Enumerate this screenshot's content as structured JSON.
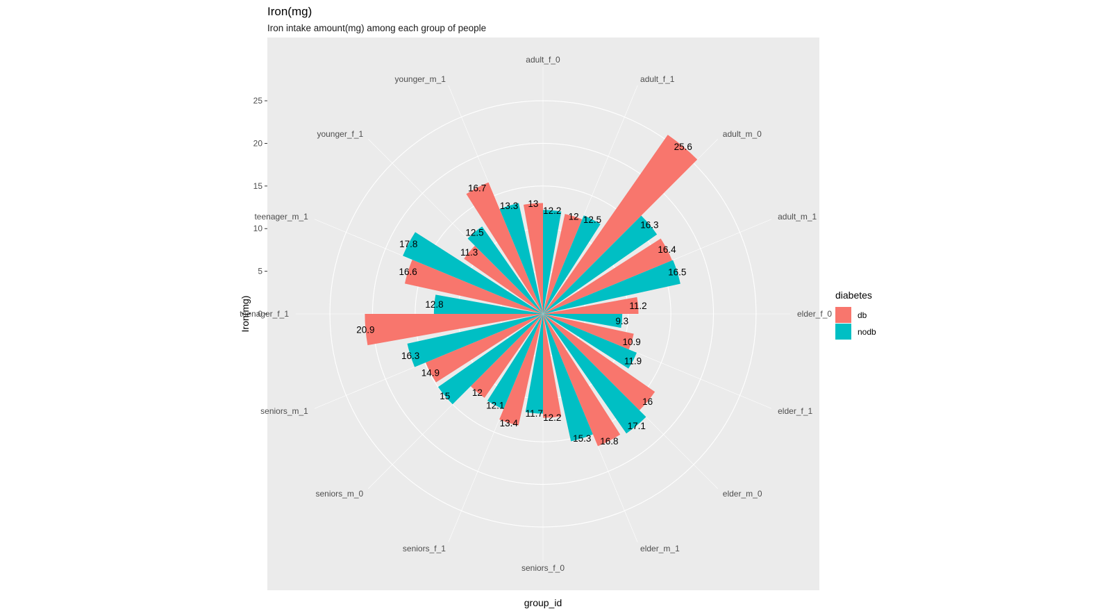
{
  "chart_data": {
    "type": "bar",
    "coord": "polar",
    "title": "Iron(mg)",
    "subtitle": "Iron intake amount(mg) among each group of people",
    "xlabel": "group_id",
    "ylabel": "Iron(mg)",
    "ylim": [
      0,
      29
    ],
    "yticks": [
      0,
      5,
      10,
      15,
      20,
      25
    ],
    "grid": true,
    "categories": [
      "adult_f_0",
      "adult_f_1",
      "adult_m_0",
      "adult_m_1",
      "elder_f_0",
      "elder_f_1",
      "elder_m_0",
      "elder_m_1",
      "seniors_f_0",
      "seniors_f_1",
      "seniors_m_0",
      "seniors_m_1",
      "teenager_f_1",
      "teenager_m_1",
      "younger_f_1",
      "younger_m_1"
    ],
    "series": [
      {
        "name": "db",
        "color": "#F8766D",
        "values": [
          13,
          12,
          25.6,
          16.4,
          11.2,
          10.9,
          16,
          16.8,
          12.2,
          13.4,
          12,
          14.9,
          20.9,
          16.6,
          11.3,
          16.7
        ]
      },
      {
        "name": "nodb",
        "color": "#00BFC4",
        "values": [
          12.2,
          12.5,
          16.3,
          16.5,
          9.3,
          11.9,
          17.1,
          15.3,
          11.7,
          12.1,
          15,
          16.3,
          12.8,
          17.8,
          12.5,
          13.3
        ]
      }
    ],
    "legend": {
      "title": "diabetes",
      "position": "right"
    }
  }
}
